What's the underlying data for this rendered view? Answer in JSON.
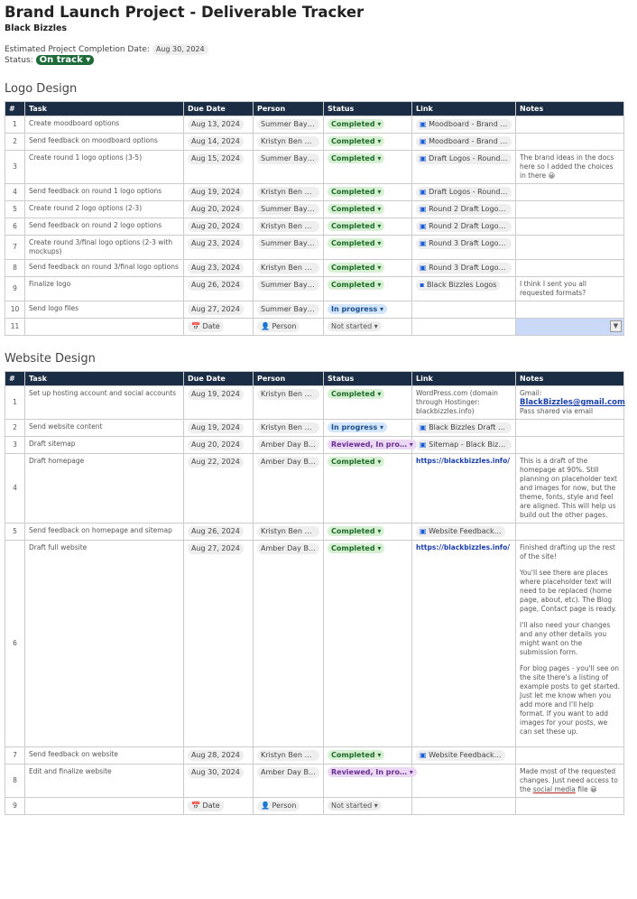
{
  "title": "Brand Launch Project - Deliverable Tracker",
  "subtitle": "Black Bizzles",
  "completion_label": "Estimated Project Completion Date:",
  "completion_date": "Aug 30, 2024",
  "status_label": "Status:",
  "status_value": "On track ▾",
  "columns": [
    "#",
    "Task",
    "Due Date",
    "Person",
    "Status",
    "Link",
    "Notes"
  ],
  "colors": {
    "header": "#1b2c45",
    "completed": "#1d6b28",
    "in_progress": "#1c4f8e",
    "reviewed": "#6a2e8f",
    "on_track": "#1e6b3a"
  },
  "sections": [
    {
      "title": "Logo Design",
      "rows": [
        {
          "n": "1",
          "task": "Create moodboard options",
          "date": "Aug 13, 2024",
          "person": "Summer Bay Te…",
          "status": "Completed",
          "link": "Moodboard - Brand L…",
          "link_type": "doc",
          "notes": ""
        },
        {
          "n": "2",
          "task": "Send feedback on moodboard options",
          "date": "Aug 14, 2024",
          "person": "Kristyn Ben S…",
          "status": "Completed",
          "link": "Moodboard - Brand L…",
          "link_type": "doc",
          "notes": ""
        },
        {
          "n": "3",
          "task": "Create round 1 logo options (3-5)",
          "date": "Aug 15, 2024",
          "person": "Summer Bay Te…",
          "status": "Completed",
          "link": "Draft Logos - Round 1…",
          "link_type": "doc",
          "notes": "The brand ideas in the docs here so I added the choices in there 😀"
        },
        {
          "n": "4",
          "task": "Send feedback on round 1 logo options",
          "date": "Aug 19, 2024",
          "person": "Kristyn Ben S…",
          "status": "Completed",
          "link": "Draft Logos - Round 1…",
          "link_type": "doc",
          "notes": ""
        },
        {
          "n": "5",
          "task": "Create round 2 logo options (2-3)",
          "date": "Aug 20, 2024",
          "person": "Summer Bay Te…",
          "status": "Completed",
          "link": "Round 2 Draft Logos …",
          "link_type": "doc",
          "notes": ""
        },
        {
          "n": "6",
          "task": "Send feedback on round 2 logo options",
          "date": "Aug 20, 2024",
          "person": "Kristyn Ben S…",
          "status": "Completed",
          "link": "Round 2 Draft Logos …",
          "link_type": "doc",
          "notes": ""
        },
        {
          "n": "7",
          "task": "Create round 3/final logo options (2-3 with mockups)",
          "date": "Aug 23, 2024",
          "person": "Summer Bay Te…",
          "status": "Completed",
          "link": "Round 3 Draft Logos …",
          "link_type": "doc",
          "notes": ""
        },
        {
          "n": "8",
          "task": "Send feedback on round 3/final logo options",
          "date": "Aug 23, 2024",
          "person": "Kristyn Ben S…",
          "status": "Completed",
          "link": "Round 3 Draft Logos …",
          "link_type": "doc",
          "notes": ""
        },
        {
          "n": "9",
          "task": "Finalize logo",
          "date": "Aug 26, 2024",
          "person": "Summer Bay Te…",
          "status": "Completed",
          "link": "Black Bizzles Logos",
          "link_type": "folder",
          "notes": "I think I sent you all requested formats?"
        },
        {
          "n": "10",
          "task": "Send logo files",
          "date": "Aug 27, 2024",
          "person": "Summer Bay Te…",
          "status": "In progress",
          "link": "",
          "link_type": "",
          "notes": ""
        },
        {
          "n": "11",
          "task": "",
          "date": "📅 Date",
          "person": "👤 Person",
          "status": "Not started",
          "link": "",
          "link_type": "",
          "notes": "",
          "selected": true
        }
      ]
    },
    {
      "title": "Website Design",
      "rows": [
        {
          "n": "1",
          "task": "Set up hosting account and social accounts",
          "date": "Aug 19, 2024",
          "person": "Kristyn Ben S…",
          "status": "Completed",
          "link": "WordPress.com (domain through Hostinger: blackbizzles.info)",
          "link_type": "text",
          "notes_parts": [
            "Gmail:",
            "BlackBizzles@gmail.com",
            "Pass shared via email"
          ]
        },
        {
          "n": "2",
          "task": "Send website content",
          "date": "Aug 19, 2024",
          "person": "Kristyn Ben S…",
          "status": "In progress",
          "link": "Black Bizzles Draft C…",
          "link_type": "doc",
          "notes": ""
        },
        {
          "n": "3",
          "task": "Draft sitemap",
          "date": "Aug 20, 2024",
          "person": "Amber Day B…",
          "status": "Reviewed, In pro…",
          "link": "Sitemap - Black Bizz…",
          "link_type": "doc",
          "notes": ""
        },
        {
          "n": "4",
          "task": "Draft homepage",
          "date": "Aug 22, 2024",
          "person": "Amber Day B…",
          "status": "Completed",
          "link": "https://blackbizzles.info/",
          "link_type": "url",
          "notes": "This is a draft of the homepage at 90%. Still planning on placeholder text and images for now, but the theme, fonts, style and feel are aligned. This will help us build out the other pages."
        },
        {
          "n": "5",
          "task": "Send feedback on homepage and sitemap",
          "date": "Aug 26, 2024",
          "person": "Kristyn Ben S…",
          "status": "Completed",
          "link": "Website Feedback…",
          "link_type": "doc",
          "notes": ""
        },
        {
          "n": "6",
          "task": "Draft full website",
          "date": "Aug 27, 2024",
          "person": "Amber Day B…",
          "status": "Completed",
          "link": "https://blackbizzles.info/",
          "link_type": "url",
          "notes_paras": [
            "Finished drafting up the rest of the site!",
            "You'll see there are places where placeholder text will need to be replaced (home page, about, etc). The Blog page, Contact page is ready.",
            "I'll also need your changes and any other details you might want on the submission form.",
            "For blog pages - you'll see on the site there's a listing of example posts to get started. Just let me know when you add more and I'll help format. If you want to add images for your posts, we can set these up."
          ]
        },
        {
          "n": "7",
          "task": "Send feedback on website",
          "date": "Aug 28, 2024",
          "person": "Kristyn Ben S…",
          "status": "Completed",
          "link": "Website Feedback…",
          "link_type": "doc",
          "notes": ""
        },
        {
          "n": "8",
          "task": "Edit and finalize website",
          "date": "Aug 30, 2024",
          "person": "Amber Day B…",
          "status": "Reviewed, In pro…",
          "link": "",
          "link_type": "",
          "notes_parts2": [
            "Made most of the requested changes. Just need access to the ",
            "social media",
            "file 😀"
          ]
        },
        {
          "n": "9",
          "task": "",
          "date": "📅 Date",
          "person": "👤 Person",
          "status": "Not started",
          "link": "",
          "link_type": "",
          "notes": ""
        }
      ]
    }
  ]
}
